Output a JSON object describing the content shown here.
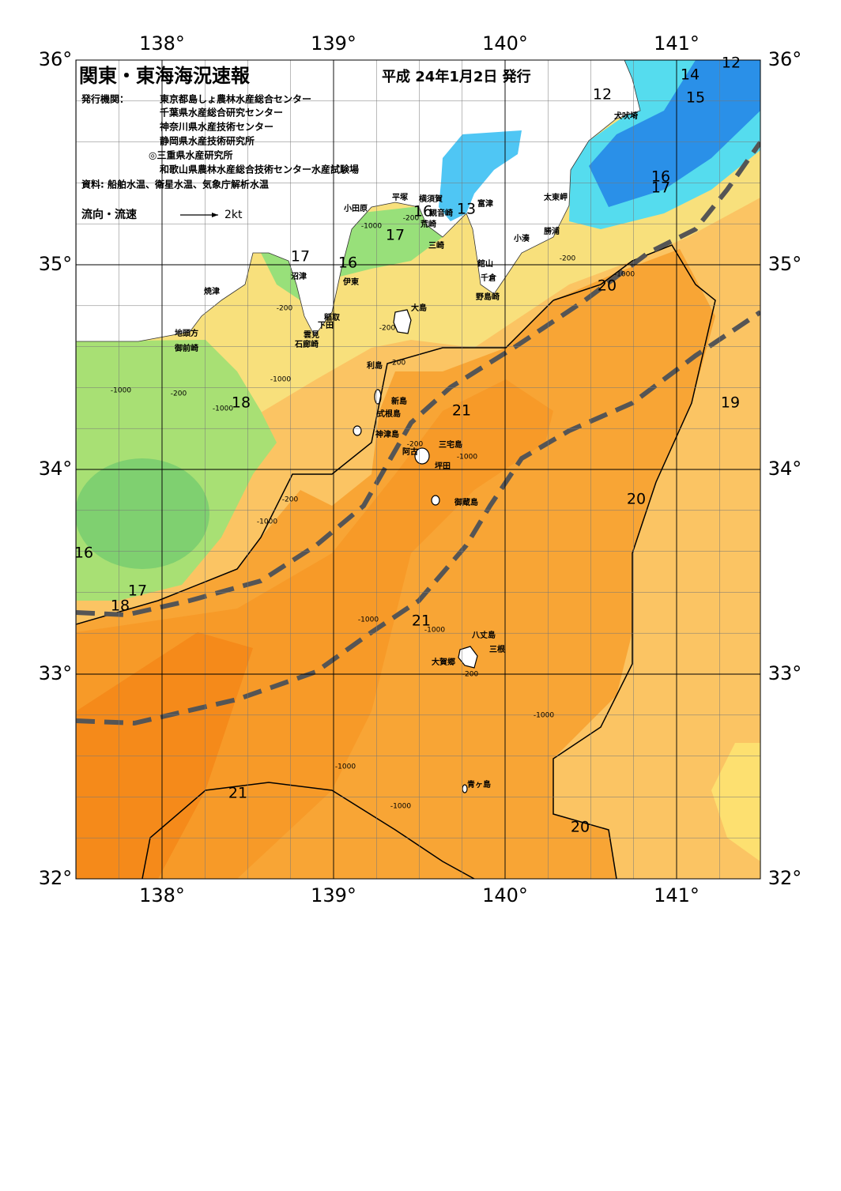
{
  "header": {
    "title": "関東・東海海況速報",
    "date": "平成 24年1月2日 発行",
    "publisher_label": "発行機関：",
    "publishers": [
      "東京都島しょ農林水産総合センター",
      "千葉県水産総合研究センター",
      "神奈川県水産技術センター",
      "静岡県水産技術研究所",
      "◎三重県水産研究所",
      "和歌山県農林水産総合技術センター水産試験場"
    ],
    "source": "資料: 船舶水温、衛星水温、気象庁解析水温",
    "legend_label": "流向・流速",
    "legend_speed": "2kt"
  },
  "map": {
    "lon_ticks": [
      {
        "value": 138,
        "label": "138°"
      },
      {
        "value": 139,
        "label": "139°"
      },
      {
        "value": 140,
        "label": "140°"
      },
      {
        "value": 141,
        "label": "141°"
      }
    ],
    "lat_ticks": [
      {
        "value": 36,
        "label": "36°"
      },
      {
        "value": 35,
        "label": "35°"
      },
      {
        "value": 34,
        "label": "34°"
      },
      {
        "value": 33,
        "label": "33°"
      },
      {
        "value": 32,
        "label": "32°"
      }
    ],
    "places": [
      "大島",
      "利島",
      "新島",
      "式根島",
      "神津島",
      "三宅島",
      "阿古",
      "坪田",
      "御蔵島",
      "八丈島",
      "三根",
      "大賀郷",
      "青ヶ島",
      "犬吠埼",
      "太東岬",
      "勝浦",
      "小湊",
      "館山",
      "千倉",
      "野島崎",
      "富津",
      "横須賀",
      "観音崎",
      "平塚",
      "小田原",
      "荒崎",
      "三崎",
      "伊東",
      "稲取",
      "下田",
      "雲見",
      "石廊崎",
      "沼津",
      "焼津",
      "地頭方",
      "御前崎"
    ],
    "isotherm_labels": [
      12,
      14,
      15,
      12,
      16,
      17,
      20,
      19,
      20,
      20,
      21,
      21,
      21,
      18,
      16,
      17,
      18,
      17,
      16,
      17,
      16,
      13
    ],
    "depth_labels": [
      -200,
      -1000,
      -200,
      -1000,
      -200,
      -1000,
      -200,
      -200,
      -200,
      -1000,
      -1000,
      -200,
      -1000,
      -1000,
      -200,
      -1000,
      -1000,
      -200,
      -1000,
      -1000,
      -1000
    ]
  }
}
